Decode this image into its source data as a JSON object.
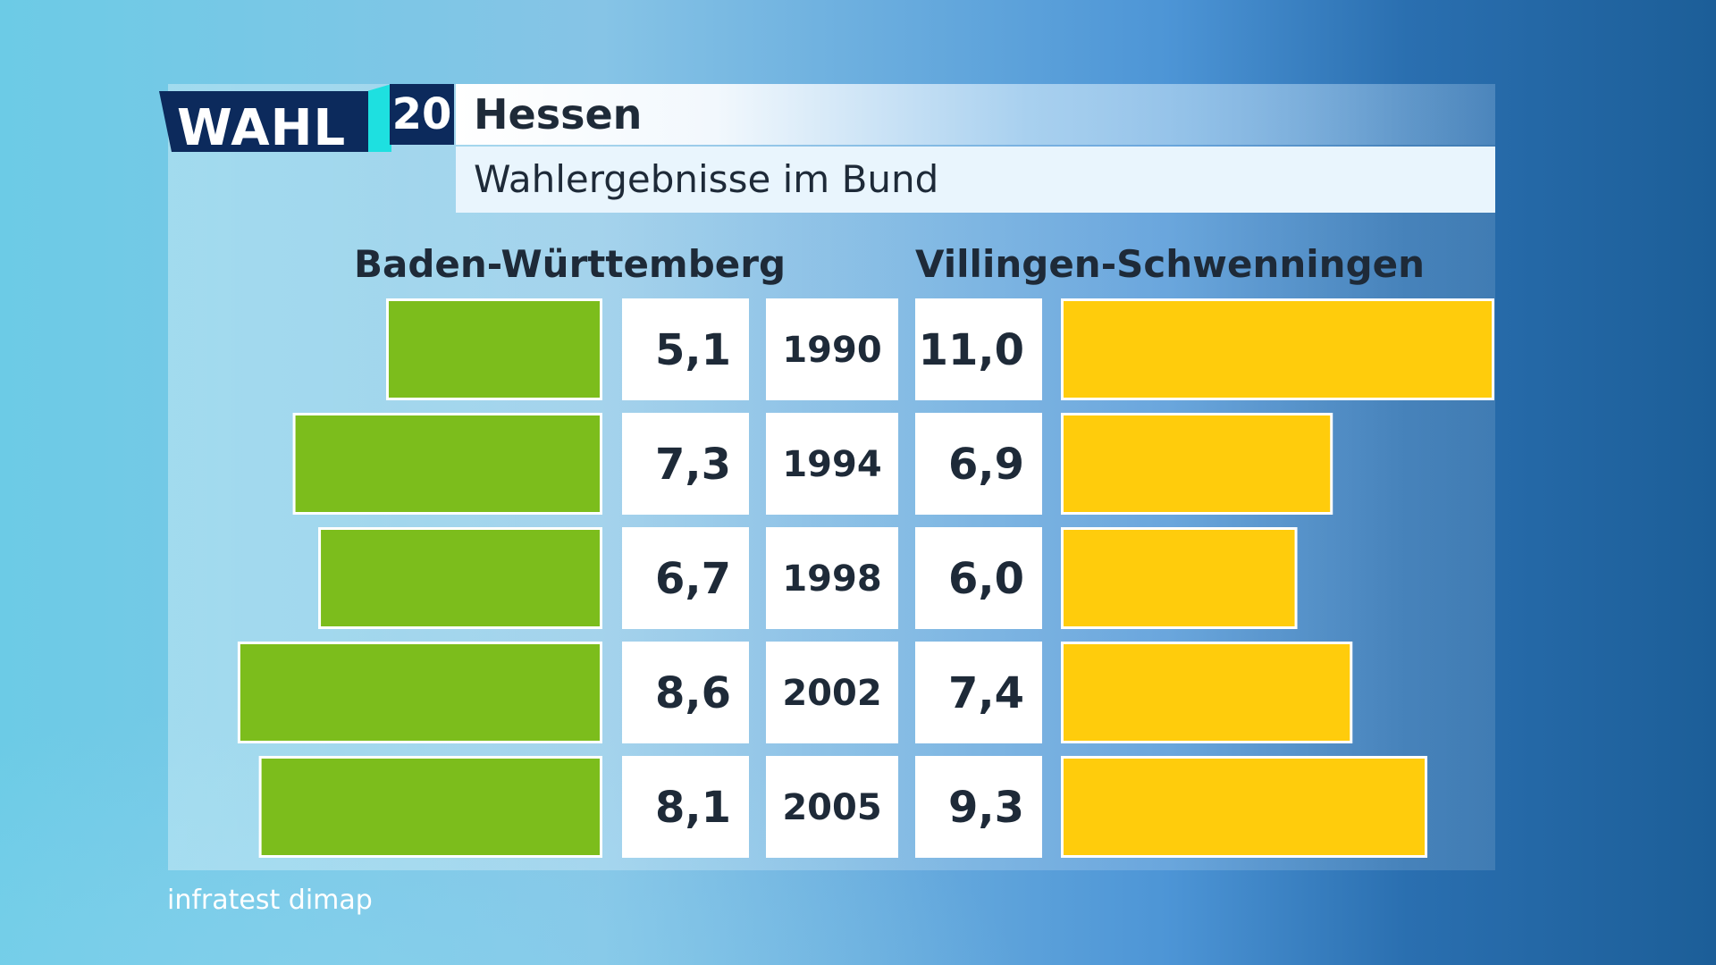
{
  "logo": {
    "word": "WAHL",
    "number": "20"
  },
  "header": {
    "title": "Hessen",
    "subtitle": "Wahlergebnisse im Bund"
  },
  "source": "infratest dimap",
  "colors": {
    "left_bar": "#7cbd1c",
    "right_bar": "#ffcc0c",
    "logo_navy": "#0c2a5c",
    "logo_accent": "#1ee0e0"
  },
  "chart_data": {
    "type": "bar",
    "orientation": "horizontal-butterfly",
    "categories": [
      "1990",
      "1994",
      "1998",
      "2002",
      "2005"
    ],
    "series": [
      {
        "name": "Baden-Württemberg",
        "values": [
          5.1,
          7.3,
          6.7,
          8.6,
          8.1
        ],
        "labels": [
          "5,1",
          "7,3",
          "6,7",
          "8,6",
          "8,1"
        ]
      },
      {
        "name": "Villingen-Schwenningen",
        "values": [
          11.0,
          6.9,
          6.0,
          7.4,
          9.3
        ],
        "labels": [
          "11,0",
          "6,9",
          "6,0",
          "7,4",
          "9,3"
        ]
      }
    ],
    "xlim": [
      0,
      11.0
    ]
  }
}
